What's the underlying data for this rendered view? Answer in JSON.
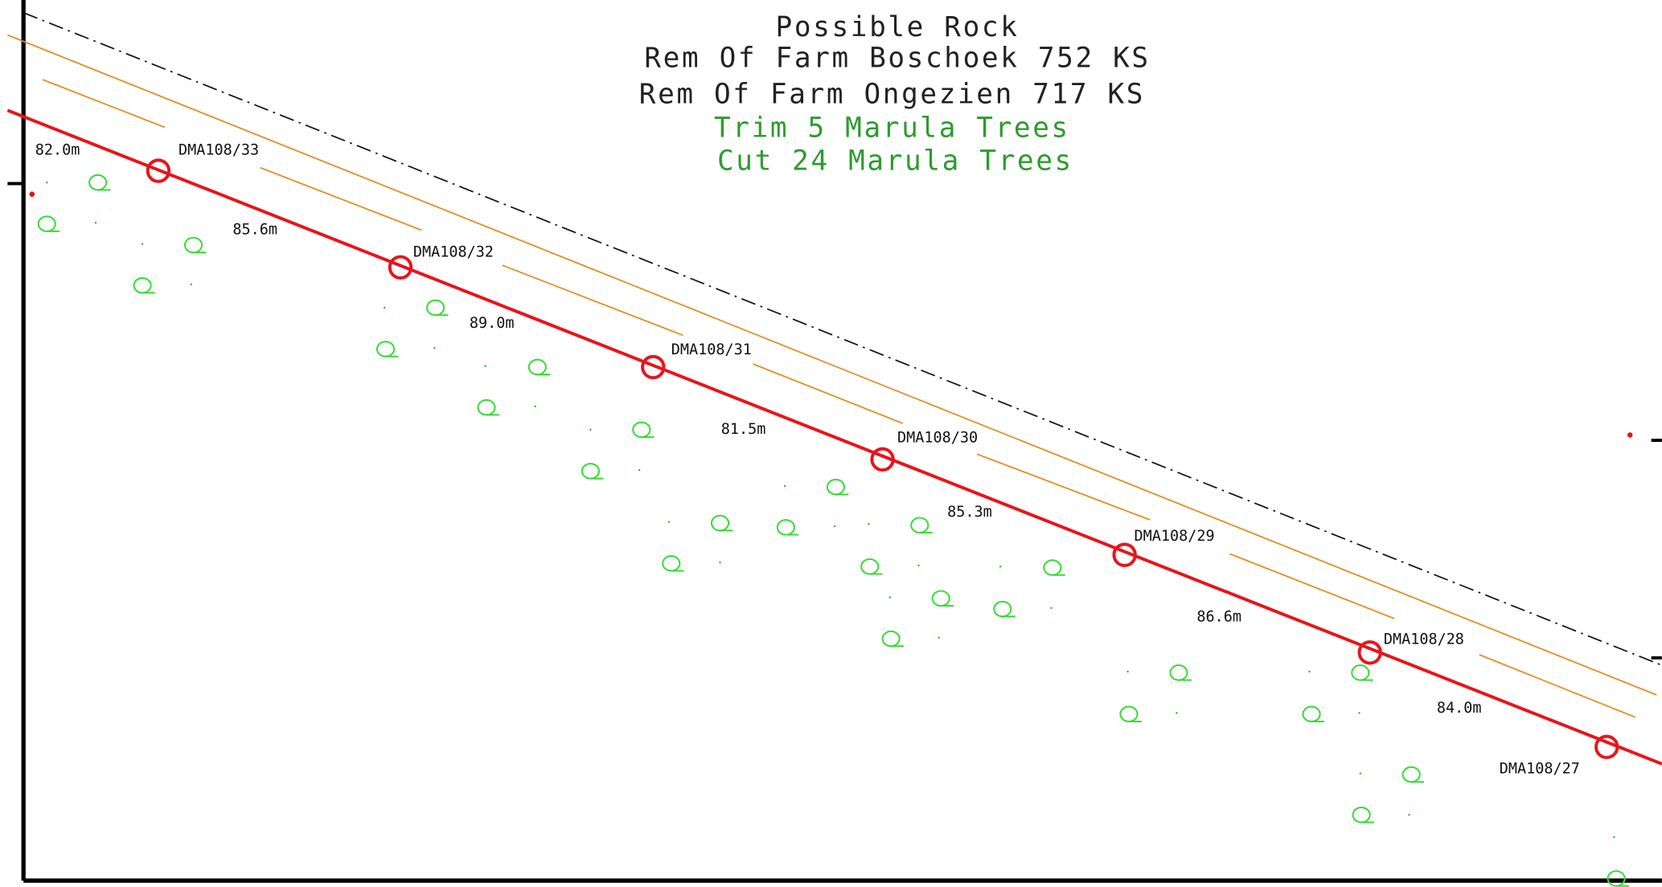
{
  "header": {
    "lines": [
      "Possible Rock",
      "Rem Of Farm Boschoek 752 KS",
      "Rem Of Farm Ongezien 717 KS"
    ],
    "notes": [
      "Trim 5 Marula Trees",
      "Cut 24 Marula Trees"
    ]
  },
  "poles": [
    {
      "label": "DMA108/33"
    },
    {
      "label": "DMA108/32"
    },
    {
      "label": "DMA108/31"
    },
    {
      "label": "DMA108/30"
    },
    {
      "label": "DMA108/29"
    },
    {
      "label": "DMA108/28"
    },
    {
      "label": "DMA108/27"
    }
  ],
  "spans": [
    "82.0m",
    "85.6m",
    "89.0m",
    "81.5m",
    "85.3m",
    "86.6m",
    "84.0m"
  ]
}
